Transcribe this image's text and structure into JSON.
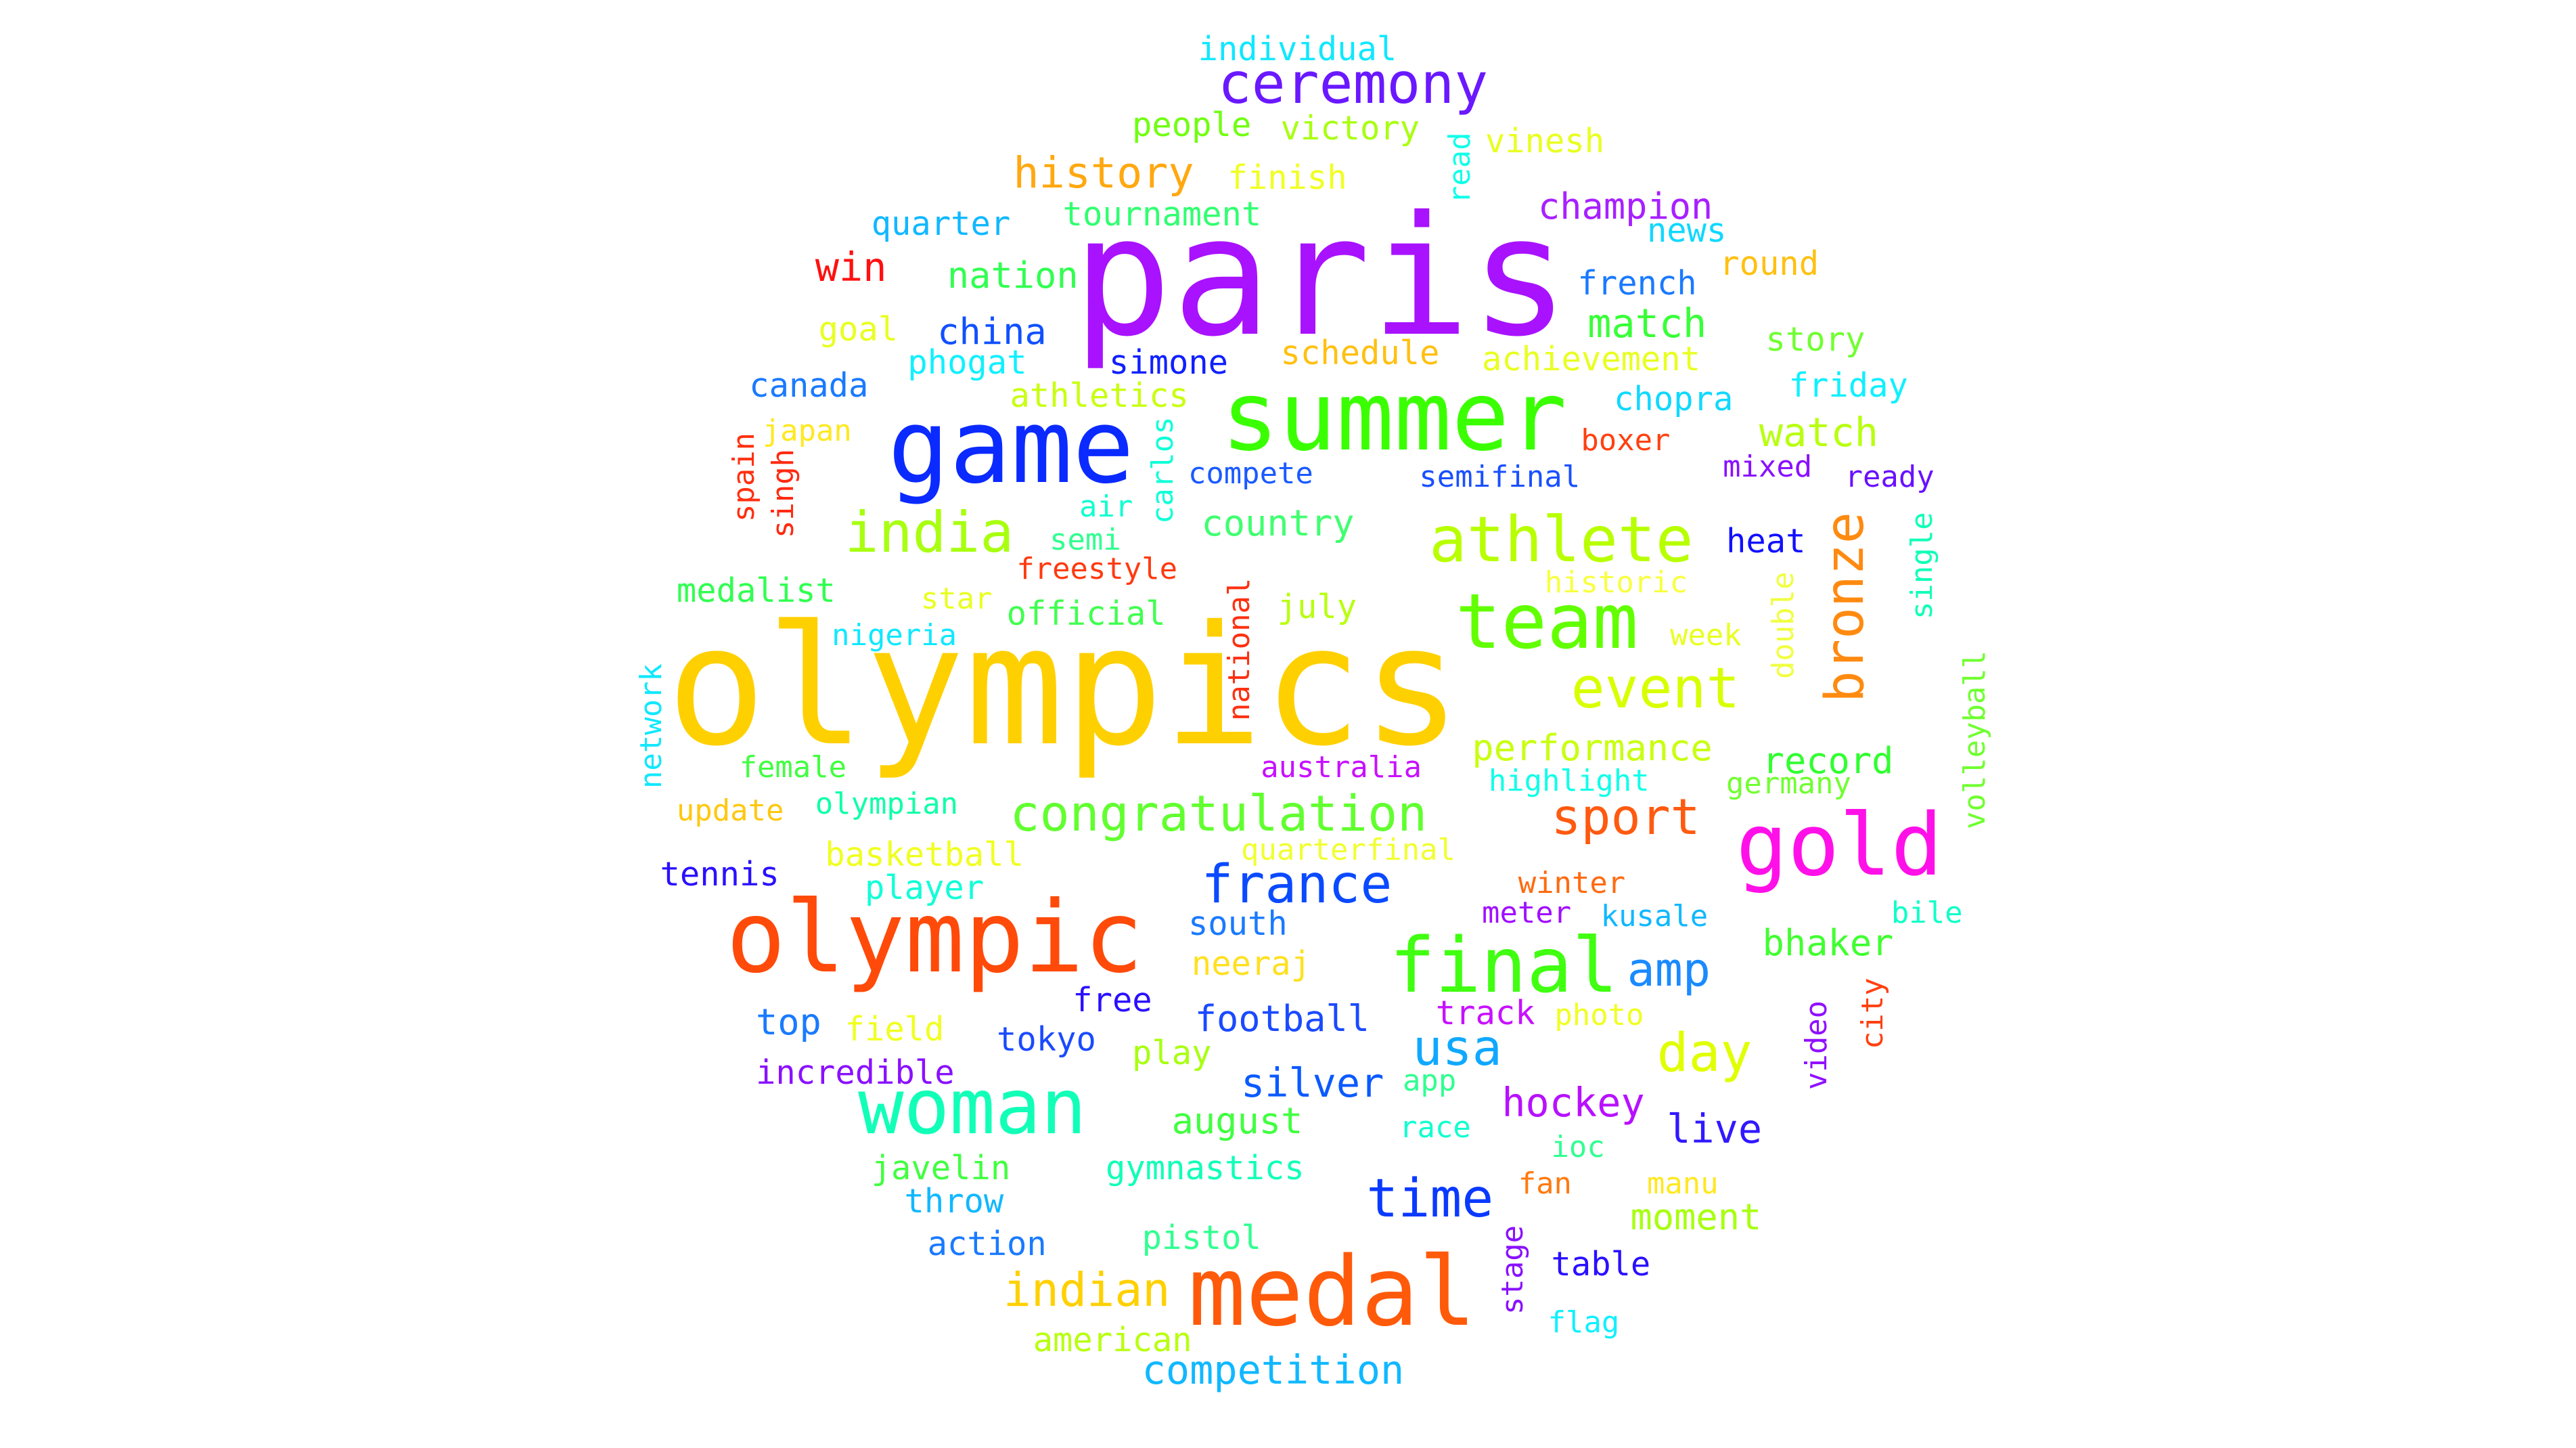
{
  "words": [
    {
      "text": "paris",
      "color": "#a812ff"
    },
    {
      "text": "olympics",
      "color": "#ffd000"
    },
    {
      "text": "game",
      "color": "#0a2aff"
    },
    {
      "text": "summer",
      "color": "#3aff00"
    },
    {
      "text": "olympic",
      "color": "#ff4a0a"
    },
    {
      "text": "medal",
      "color": "#ff5a0a"
    },
    {
      "text": "woman",
      "color": "#12ffb8"
    },
    {
      "text": "gold",
      "color": "#ff10e8"
    },
    {
      "text": "team",
      "color": "#62ff00"
    },
    {
      "text": "final",
      "color": "#40ff10"
    },
    {
      "text": "athlete",
      "color": "#b8ff00"
    },
    {
      "text": "ceremony",
      "color": "#6a18ff"
    },
    {
      "text": "india",
      "color": "#a8ff10"
    },
    {
      "text": "event",
      "color": "#d8ff00"
    },
    {
      "text": "congratulation",
      "color": "#62ff30"
    },
    {
      "text": "france",
      "color": "#0a4aff"
    },
    {
      "text": "sport",
      "color": "#ff5a10"
    },
    {
      "text": "bronze",
      "color": "#ff8a10"
    },
    {
      "text": "time",
      "color": "#0a3aff"
    },
    {
      "text": "indian",
      "color": "#ffd000"
    },
    {
      "text": "day",
      "color": "#e0ff00"
    },
    {
      "text": "usa",
      "color": "#10a8ff"
    },
    {
      "text": "history",
      "color": "#ffa810"
    },
    {
      "text": "amp",
      "color": "#1a8aff"
    },
    {
      "text": "match",
      "color": "#38ff38"
    },
    {
      "text": "watch",
      "color": "#b8ff10"
    },
    {
      "text": "record",
      "color": "#30ff30"
    },
    {
      "text": "bhaker",
      "color": "#40ff30"
    },
    {
      "text": "hockey",
      "color": "#b810ff"
    },
    {
      "text": "silver",
      "color": "#0a5aff"
    },
    {
      "text": "country",
      "color": "#40ff70"
    },
    {
      "text": "performance",
      "color": "#c8ff10"
    },
    {
      "text": "competition",
      "color": "#10b8ff"
    },
    {
      "text": "win",
      "color": "#ff1010"
    },
    {
      "text": "champion",
      "color": "#a820ff"
    },
    {
      "text": "live",
      "color": "#3018ff"
    },
    {
      "text": "moment",
      "color": "#a8ff10"
    },
    {
      "text": "august",
      "color": "#40ff40"
    },
    {
      "text": "football",
      "color": "#1a4aff"
    },
    {
      "text": "nation",
      "color": "#30ff50"
    },
    {
      "text": "china",
      "color": "#1050ff"
    },
    {
      "text": "french",
      "color": "#1a7aff"
    },
    {
      "text": "people",
      "color": "#70ff10"
    },
    {
      "text": "victory",
      "color": "#a8ff10"
    },
    {
      "text": "individual",
      "color": "#10e8ff"
    },
    {
      "text": "finish",
      "color": "#f0ff20"
    },
    {
      "text": "quarter",
      "color": "#10b8ff"
    },
    {
      "text": "tournament",
      "color": "#30ff70"
    },
    {
      "text": "news",
      "color": "#10d8ff"
    },
    {
      "text": "round",
      "color": "#ffc010"
    },
    {
      "text": "vinesh",
      "color": "#e8ff20"
    },
    {
      "text": "read",
      "color": "#10ffe8"
    },
    {
      "text": "goal",
      "color": "#e8ff20"
    },
    {
      "text": "phogat",
      "color": "#10f0ff"
    },
    {
      "text": "simone",
      "color": "#1020ff"
    },
    {
      "text": "schedule",
      "color": "#ffc010"
    },
    {
      "text": "achievement",
      "color": "#e8ff20"
    },
    {
      "text": "story",
      "color": "#70ff30"
    },
    {
      "text": "canada",
      "color": "#1a7aff"
    },
    {
      "text": "athletics",
      "color": "#c8ff10"
    },
    {
      "text": "chopra",
      "color": "#10d8ff"
    },
    {
      "text": "friday",
      "color": "#10f0ff"
    },
    {
      "text": "japan",
      "color": "#ffe820"
    },
    {
      "text": "boxer",
      "color": "#ff4010"
    },
    {
      "text": "spain",
      "color": "#ff3010"
    },
    {
      "text": "singh",
      "color": "#ff2a10"
    },
    {
      "text": "carlos",
      "color": "#10ffd8"
    },
    {
      "text": "compete",
      "color": "#1a5aff"
    },
    {
      "text": "semifinal",
      "color": "#1a50ff"
    },
    {
      "text": "mixed",
      "color": "#8a10ff"
    },
    {
      "text": "ready",
      "color": "#6a10ff"
    },
    {
      "text": "air",
      "color": "#10ffd0"
    },
    {
      "text": "semi",
      "color": "#30ff90"
    },
    {
      "text": "heat",
      "color": "#1010ff"
    },
    {
      "text": "freestyle",
      "color": "#ff3a10"
    },
    {
      "text": "medalist",
      "color": "#30ff50"
    },
    {
      "text": "star",
      "color": "#e8ff20"
    },
    {
      "text": "official",
      "color": "#40ff50"
    },
    {
      "text": "july",
      "color": "#b8ff10"
    },
    {
      "text": "historic",
      "color": "#f8ff40"
    },
    {
      "text": "single",
      "color": "#10ffb8"
    },
    {
      "text": "nigeria",
      "color": "#10e8ff"
    },
    {
      "text": "national",
      "color": "#ff3010"
    },
    {
      "text": "week",
      "color": "#e8ff20"
    },
    {
      "text": "double",
      "color": "#f0ff40"
    },
    {
      "text": "network",
      "color": "#10e8ff"
    },
    {
      "text": "female",
      "color": "#40ff40"
    },
    {
      "text": "australia",
      "color": "#c810ff"
    },
    {
      "text": "highlight",
      "color": "#10ffe8"
    },
    {
      "text": "germany",
      "color": "#70ff30"
    },
    {
      "text": "volleyball",
      "color": "#70ff30"
    },
    {
      "text": "update",
      "color": "#ffc810"
    },
    {
      "text": "olympian",
      "color": "#10ffa8"
    },
    {
      "text": "basketball",
      "color": "#f0ff20"
    },
    {
      "text": "quarterfinal",
      "color": "#f0ff30"
    },
    {
      "text": "tennis",
      "color": "#2a10ff"
    },
    {
      "text": "player",
      "color": "#10ffd8"
    },
    {
      "text": "winter",
      "color": "#ff6a10"
    },
    {
      "text": "meter",
      "color": "#a010ff"
    },
    {
      "text": "kusale",
      "color": "#10b8ff"
    },
    {
      "text": "bile",
      "color": "#10ffc8"
    },
    {
      "text": "south",
      "color": "#1a7aff"
    },
    {
      "text": "neeraj",
      "color": "#ffe020"
    },
    {
      "text": "free",
      "color": "#2a10ff"
    },
    {
      "text": "track",
      "color": "#c810ff"
    },
    {
      "text": "photo",
      "color": "#f0ff20"
    },
    {
      "text": "top",
      "color": "#1a7aff"
    },
    {
      "text": "field",
      "color": "#f0ff20"
    },
    {
      "text": "tokyo",
      "color": "#1a4aff"
    },
    {
      "text": "play",
      "color": "#a8ff10"
    },
    {
      "text": "video",
      "color": "#9010ff"
    },
    {
      "text": "city",
      "color": "#ff4010"
    },
    {
      "text": "incredible",
      "color": "#8a10ff"
    },
    {
      "text": "app",
      "color": "#30ff90"
    },
    {
      "text": "race",
      "color": "#10ffd0"
    },
    {
      "text": "ioc",
      "color": "#30ff90"
    },
    {
      "text": "javelin",
      "color": "#40ff40"
    },
    {
      "text": "gymnastics",
      "color": "#10ffb8"
    },
    {
      "text": "throw",
      "color": "#10b8ff"
    },
    {
      "text": "fan",
      "color": "#ff7a10"
    },
    {
      "text": "manu",
      "color": "#ffe820"
    },
    {
      "text": "action",
      "color": "#1a7aff"
    },
    {
      "text": "pistol",
      "color": "#30ff90"
    },
    {
      "text": "stage",
      "color": "#8a10ff"
    },
    {
      "text": "table",
      "color": "#2a10ff"
    },
    {
      "text": "flag",
      "color": "#10f0ff"
    },
    {
      "text": "american",
      "color": "#b8ff10"
    }
  ]
}
